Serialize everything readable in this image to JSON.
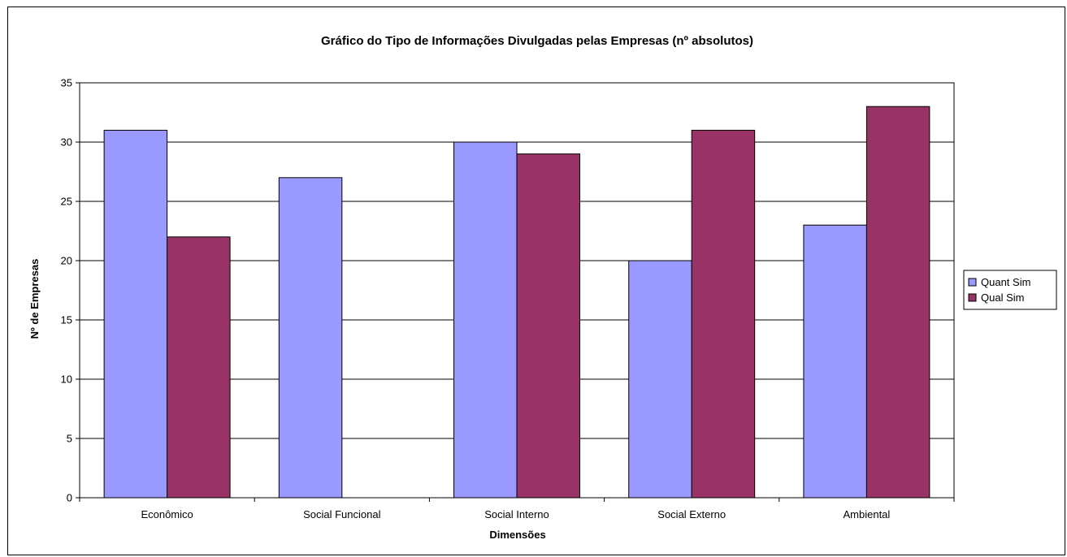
{
  "chart_data": {
    "type": "bar",
    "title": "Gráfico do Tipo de Informações Divulgadas pelas Empresas (nº absolutos)",
    "xlabel": "Dimensões",
    "ylabel": "Nº de Empresas",
    "categories": [
      "Econômico",
      "Social Funcional",
      "Social Interno",
      "Social Externo",
      "Ambiental"
    ],
    "series": [
      {
        "name": "Quant Sim",
        "color": "#9999FF",
        "values": [
          31,
          27,
          30,
          20,
          23
        ]
      },
      {
        "name": "Qual Sim",
        "color": "#993366",
        "values": [
          22,
          0,
          29,
          31,
          33
        ]
      }
    ],
    "ylim": [
      0,
      35
    ],
    "yticks": [
      0,
      5,
      10,
      15,
      20,
      25,
      30,
      35
    ],
    "grid": true,
    "legend_position": "right"
  }
}
